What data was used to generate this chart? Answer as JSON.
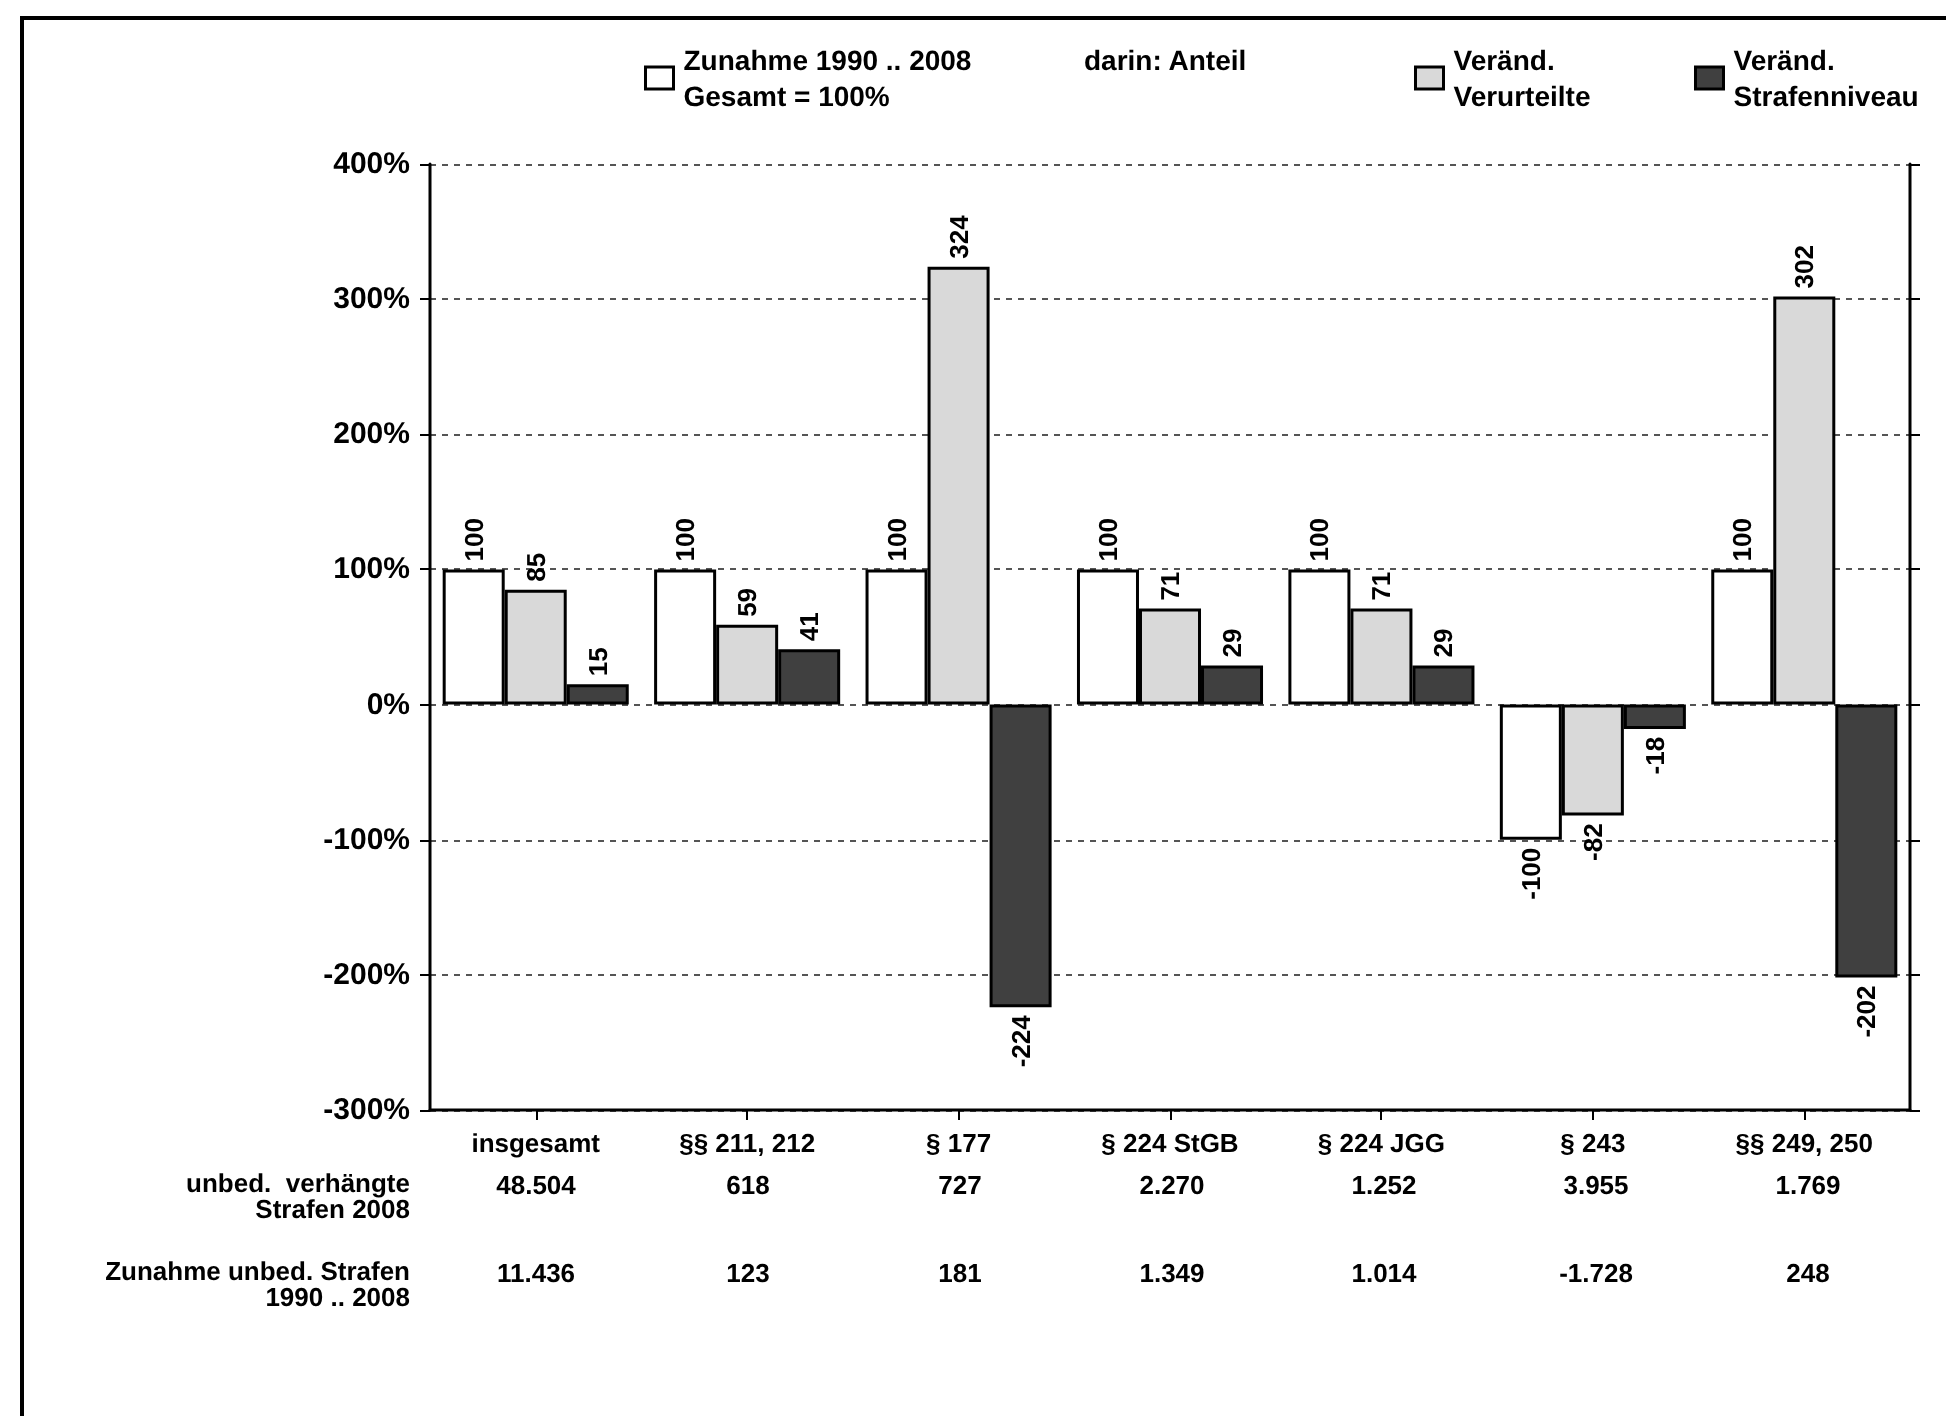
{
  "chart_data": {
    "type": "bar",
    "categories": [
      "insgesamt",
      "§§ 211, 212",
      "§ 177",
      "§ 224 StGB",
      "§ 224 JGG",
      "§ 243",
      "§§ 249, 250"
    ],
    "series": [
      {
        "name": "Zunahme 1990 .. 2008\nGesamt = 100%",
        "color": "#ffffff",
        "values": [
          100,
          100,
          100,
          100,
          100,
          -100,
          100
        ]
      },
      {
        "name": "Veränd.\nVerurteilte",
        "color": "#d9d9d9",
        "values": [
          85,
          59,
          324,
          71,
          71,
          -82,
          302
        ]
      },
      {
        "name": "Veränd.\nStrafenniveau",
        "color": "#404040",
        "values": [
          15,
          41,
          -224,
          29,
          29,
          -18,
          -202
        ]
      }
    ],
    "ylim": [
      -300,
      400
    ],
    "yticks": [
      {
        "value": -300,
        "label": "-300%"
      },
      {
        "value": -200,
        "label": "-200%"
      },
      {
        "value": -100,
        "label": "-100%"
      },
      {
        "value": 0,
        "label": "0%"
      },
      {
        "value": 100,
        "label": "100%"
      },
      {
        "value": 200,
        "label": "200%"
      },
      {
        "value": 300,
        "label": "300%"
      },
      {
        "value": 400,
        "label": "400%"
      }
    ],
    "grid": "y",
    "legend": "top",
    "data_labels": true,
    "annotations": [
      "darin: Anteil",
      "unbed.  verhängte\nStrafen 2008",
      "48.504",
      "618",
      "727",
      "2.270",
      "1.252",
      "3.955",
      "1.769",
      "Zunahme unbed. Strafen\n1990 .. 2008",
      "11.436",
      "123",
      "181",
      "1.349",
      "1.014",
      "-1.728",
      "248"
    ]
  }
}
